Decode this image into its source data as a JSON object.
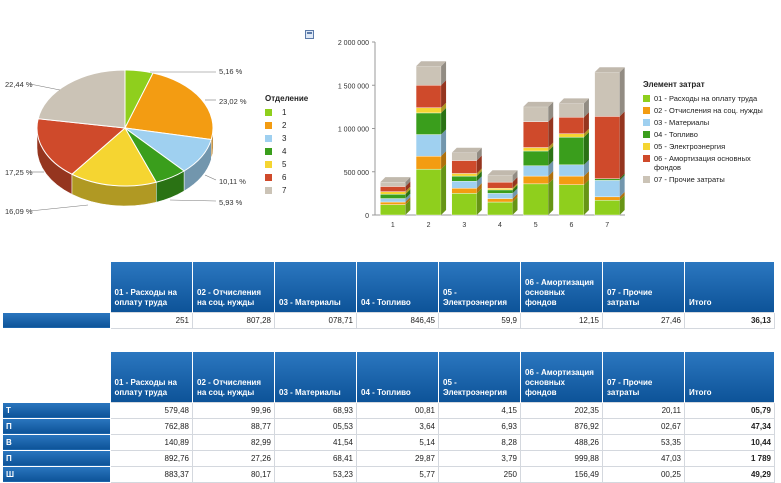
{
  "toolbar": {
    "export_icon": "export-icon"
  },
  "chart_data": [
    {
      "type": "pie",
      "legend_title": "Отделение",
      "categories": [
        "1",
        "2",
        "3",
        "4",
        "5",
        "6",
        "7"
      ],
      "values": [
        5.16,
        23.02,
        10.11,
        5.93,
        16.09,
        17.25,
        22.44
      ],
      "labels": [
        "5,16 %",
        "23,02 %",
        "10,11 %",
        "5,93 %",
        "16,09 %",
        "17,25 %",
        "22,44 %"
      ],
      "colors": [
        "#8fcf1d",
        "#f39c12",
        "#9fd0f0",
        "#3a9e1c",
        "#f5d531",
        "#cf4a2b",
        "#cbc3b6"
      ]
    },
    {
      "type": "bar",
      "stacked": true,
      "legend_title": "Элемент затрат",
      "categories": [
        "1",
        "2",
        "3",
        "4",
        "5",
        "6",
        "7"
      ],
      "series": [
        {
          "name": "01 - Расходы на оплату труда",
          "color": "#8fcf1d",
          "values": [
            120000,
            530000,
            250000,
            150000,
            360000,
            350000,
            170000
          ]
        },
        {
          "name": "02 - Отчисления на соц. нужды",
          "color": "#f39c12",
          "values": [
            30000,
            150000,
            60000,
            40000,
            90000,
            100000,
            40000
          ]
        },
        {
          "name": "03 - Материалы",
          "color": "#9fd0f0",
          "values": [
            40000,
            250000,
            80000,
            60000,
            120000,
            130000,
            190000
          ]
        },
        {
          "name": "04 - Топливо",
          "color": "#3a9e1c",
          "values": [
            50000,
            250000,
            60000,
            40000,
            170000,
            320000,
            20000
          ]
        },
        {
          "name": "05 - Электроэнергия",
          "color": "#f5d531",
          "values": [
            30000,
            60000,
            30000,
            20000,
            40000,
            40000,
            0
          ]
        },
        {
          "name": "06 - Амортизация основных фондов",
          "color": "#cf4a2b",
          "values": [
            60000,
            260000,
            150000,
            70000,
            300000,
            190000,
            720000
          ]
        },
        {
          "name": "07 - Прочие затраты",
          "color": "#cbc3b6",
          "values": [
            50000,
            220000,
            90000,
            80000,
            170000,
            160000,
            510000
          ]
        }
      ],
      "yticks": [
        "0",
        "500 000",
        "1 000 000",
        "1 500 000",
        "2 000 000"
      ],
      "ylim": [
        0,
        2000000
      ]
    }
  ],
  "table1": {
    "columns": [
      "",
      "01 - Расходы на оплату труда",
      "02 - Отчисления на соц. нужды",
      "03 - Материалы",
      "04 - Топливо",
      "05 - Электроэнергия",
      "06 - Амортизация основных фондов",
      "07 - Прочие затраты",
      "Итого"
    ],
    "rows": [
      {
        "head": "",
        "cells": [
          "251",
          "807,28",
          "078,71",
          "846,45",
          "59,9",
          "12,15",
          "27,46",
          "36,13"
        ]
      }
    ]
  },
  "table2": {
    "columns": [
      "",
      "01 - Расходы на оплату труда",
      "02 - Отчисления на соц. нужды",
      "03 - Материалы",
      "04 - Топливо",
      "05 - Электроэнергия",
      "06 - Амортизация основных фондов",
      "07 - Прочие затраты",
      "Итого"
    ],
    "rows": [
      {
        "head": "Т",
        "cells": [
          "579,48",
          "99,96",
          "68,93",
          "00,81",
          "4,15",
          "202,35",
          "20,11",
          "05,79"
        ]
      },
      {
        "head": "П",
        "cells": [
          "762,88",
          "88,77",
          "05,53",
          "3,64",
          "6,93",
          "876,92",
          "02,67",
          "47,34"
        ]
      },
      {
        "head": "В",
        "cells": [
          "140,89",
          "82,99",
          "41,54",
          "5,14",
          "8,28",
          "488,26",
          "53,35",
          "10,44"
        ]
      },
      {
        "head": "П",
        "cells": [
          "892,76",
          "27,26",
          "68,41",
          "29,87",
          "3,79",
          "999,88",
          "47,03",
          "1 789"
        ]
      },
      {
        "head": "Ш",
        "cells": [
          "883,37",
          "80,17",
          "53,23",
          "5,77",
          "250",
          "156,49",
          "00,25",
          "49,29"
        ]
      }
    ]
  }
}
